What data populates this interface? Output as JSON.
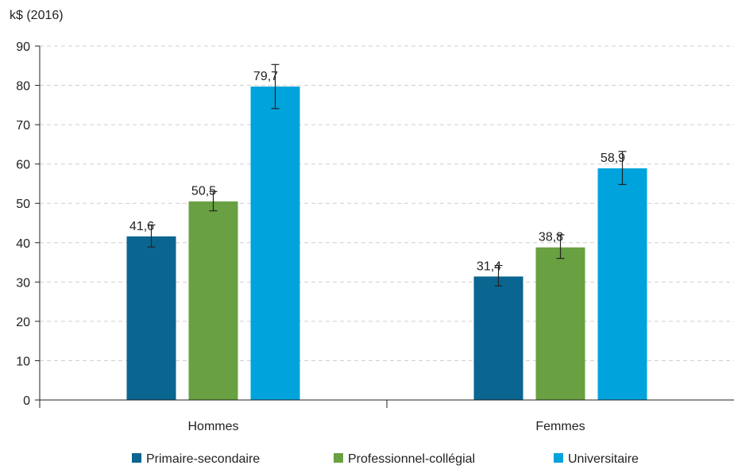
{
  "chart_data": {
    "type": "bar",
    "unit_label": "k$ (2016)",
    "categories": [
      "Hommes",
      "Femmes"
    ],
    "series": [
      {
        "name": "Primaire-secondaire",
        "color": "#0a6591",
        "values": [
          41.6,
          31.4
        ],
        "labels": [
          "41,6",
          "31,4"
        ],
        "err_low": [
          38.9,
          29.0
        ],
        "err_high": [
          44.5,
          34.2
        ]
      },
      {
        "name": "Professionnel-collégial",
        "color": "#69a042",
        "values": [
          50.5,
          38.8
        ],
        "labels": [
          "50,5",
          "38,8"
        ],
        "err_low": [
          48.1,
          36.0
        ],
        "err_high": [
          53.0,
          42.0
        ]
      },
      {
        "name": "Universitaire",
        "color": "#00a3dc",
        "values": [
          79.7,
          58.9
        ],
        "labels": [
          "79,7",
          "58,9"
        ],
        "err_low": [
          74.1,
          54.8
        ],
        "err_high": [
          85.3,
          63.2
        ]
      }
    ],
    "ylim": [
      0,
      90
    ],
    "yticks": [
      0,
      10,
      20,
      30,
      40,
      50,
      60,
      70,
      80,
      90
    ],
    "grid": true,
    "error_bars": true,
    "legend_position": "bottom"
  }
}
